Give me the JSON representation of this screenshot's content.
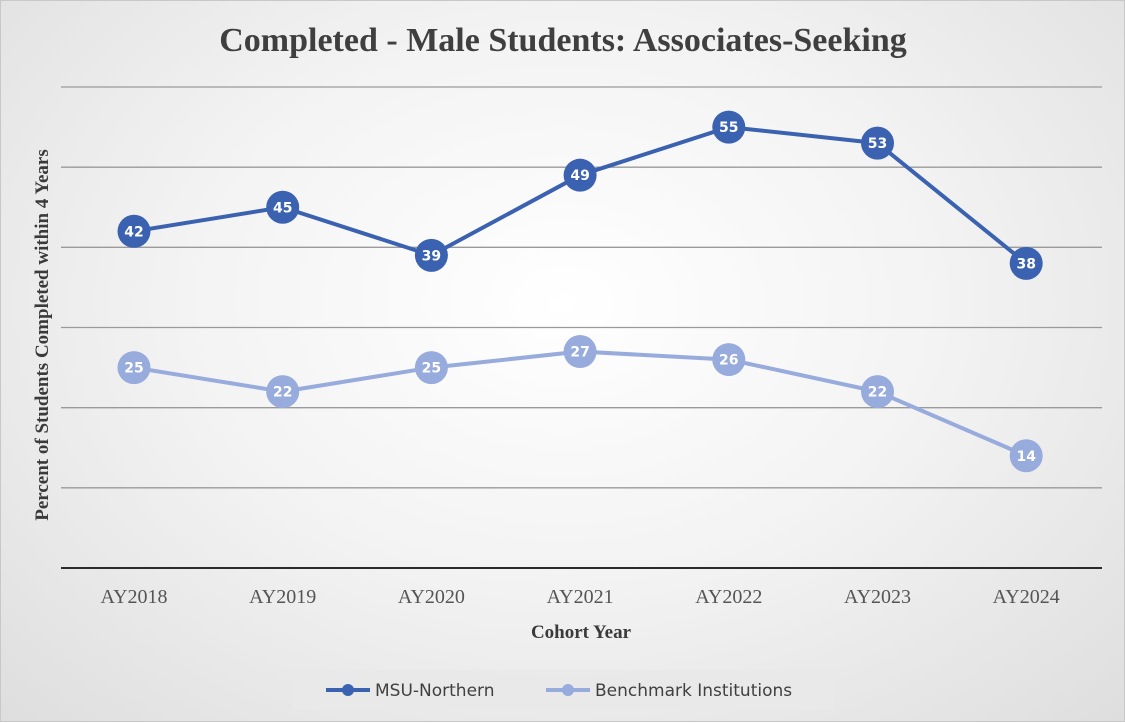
{
  "chart_data": {
    "type": "line",
    "title": "Completed - Male Students: Associates-Seeking",
    "xlabel": "Cohort Year",
    "ylabel": "Percent of  Students Completed within 4 Years",
    "categories": [
      "AY2018",
      "AY2019",
      "AY2020",
      "AY2021",
      "AY2022",
      "AY2023",
      "AY2024"
    ],
    "ylim": [
      0,
      60
    ],
    "y_tick_labels_shown": false,
    "grid": true,
    "legend_position": "bottom",
    "series": [
      {
        "name": "MSU-Northern",
        "values": [
          42,
          45,
          39,
          49,
          55,
          53,
          38
        ],
        "color": "#3a62b0"
      },
      {
        "name": "Benchmark Institutions",
        "values": [
          25,
          22,
          25,
          27,
          26,
          22,
          14
        ],
        "color": "#97abdc"
      }
    ]
  }
}
